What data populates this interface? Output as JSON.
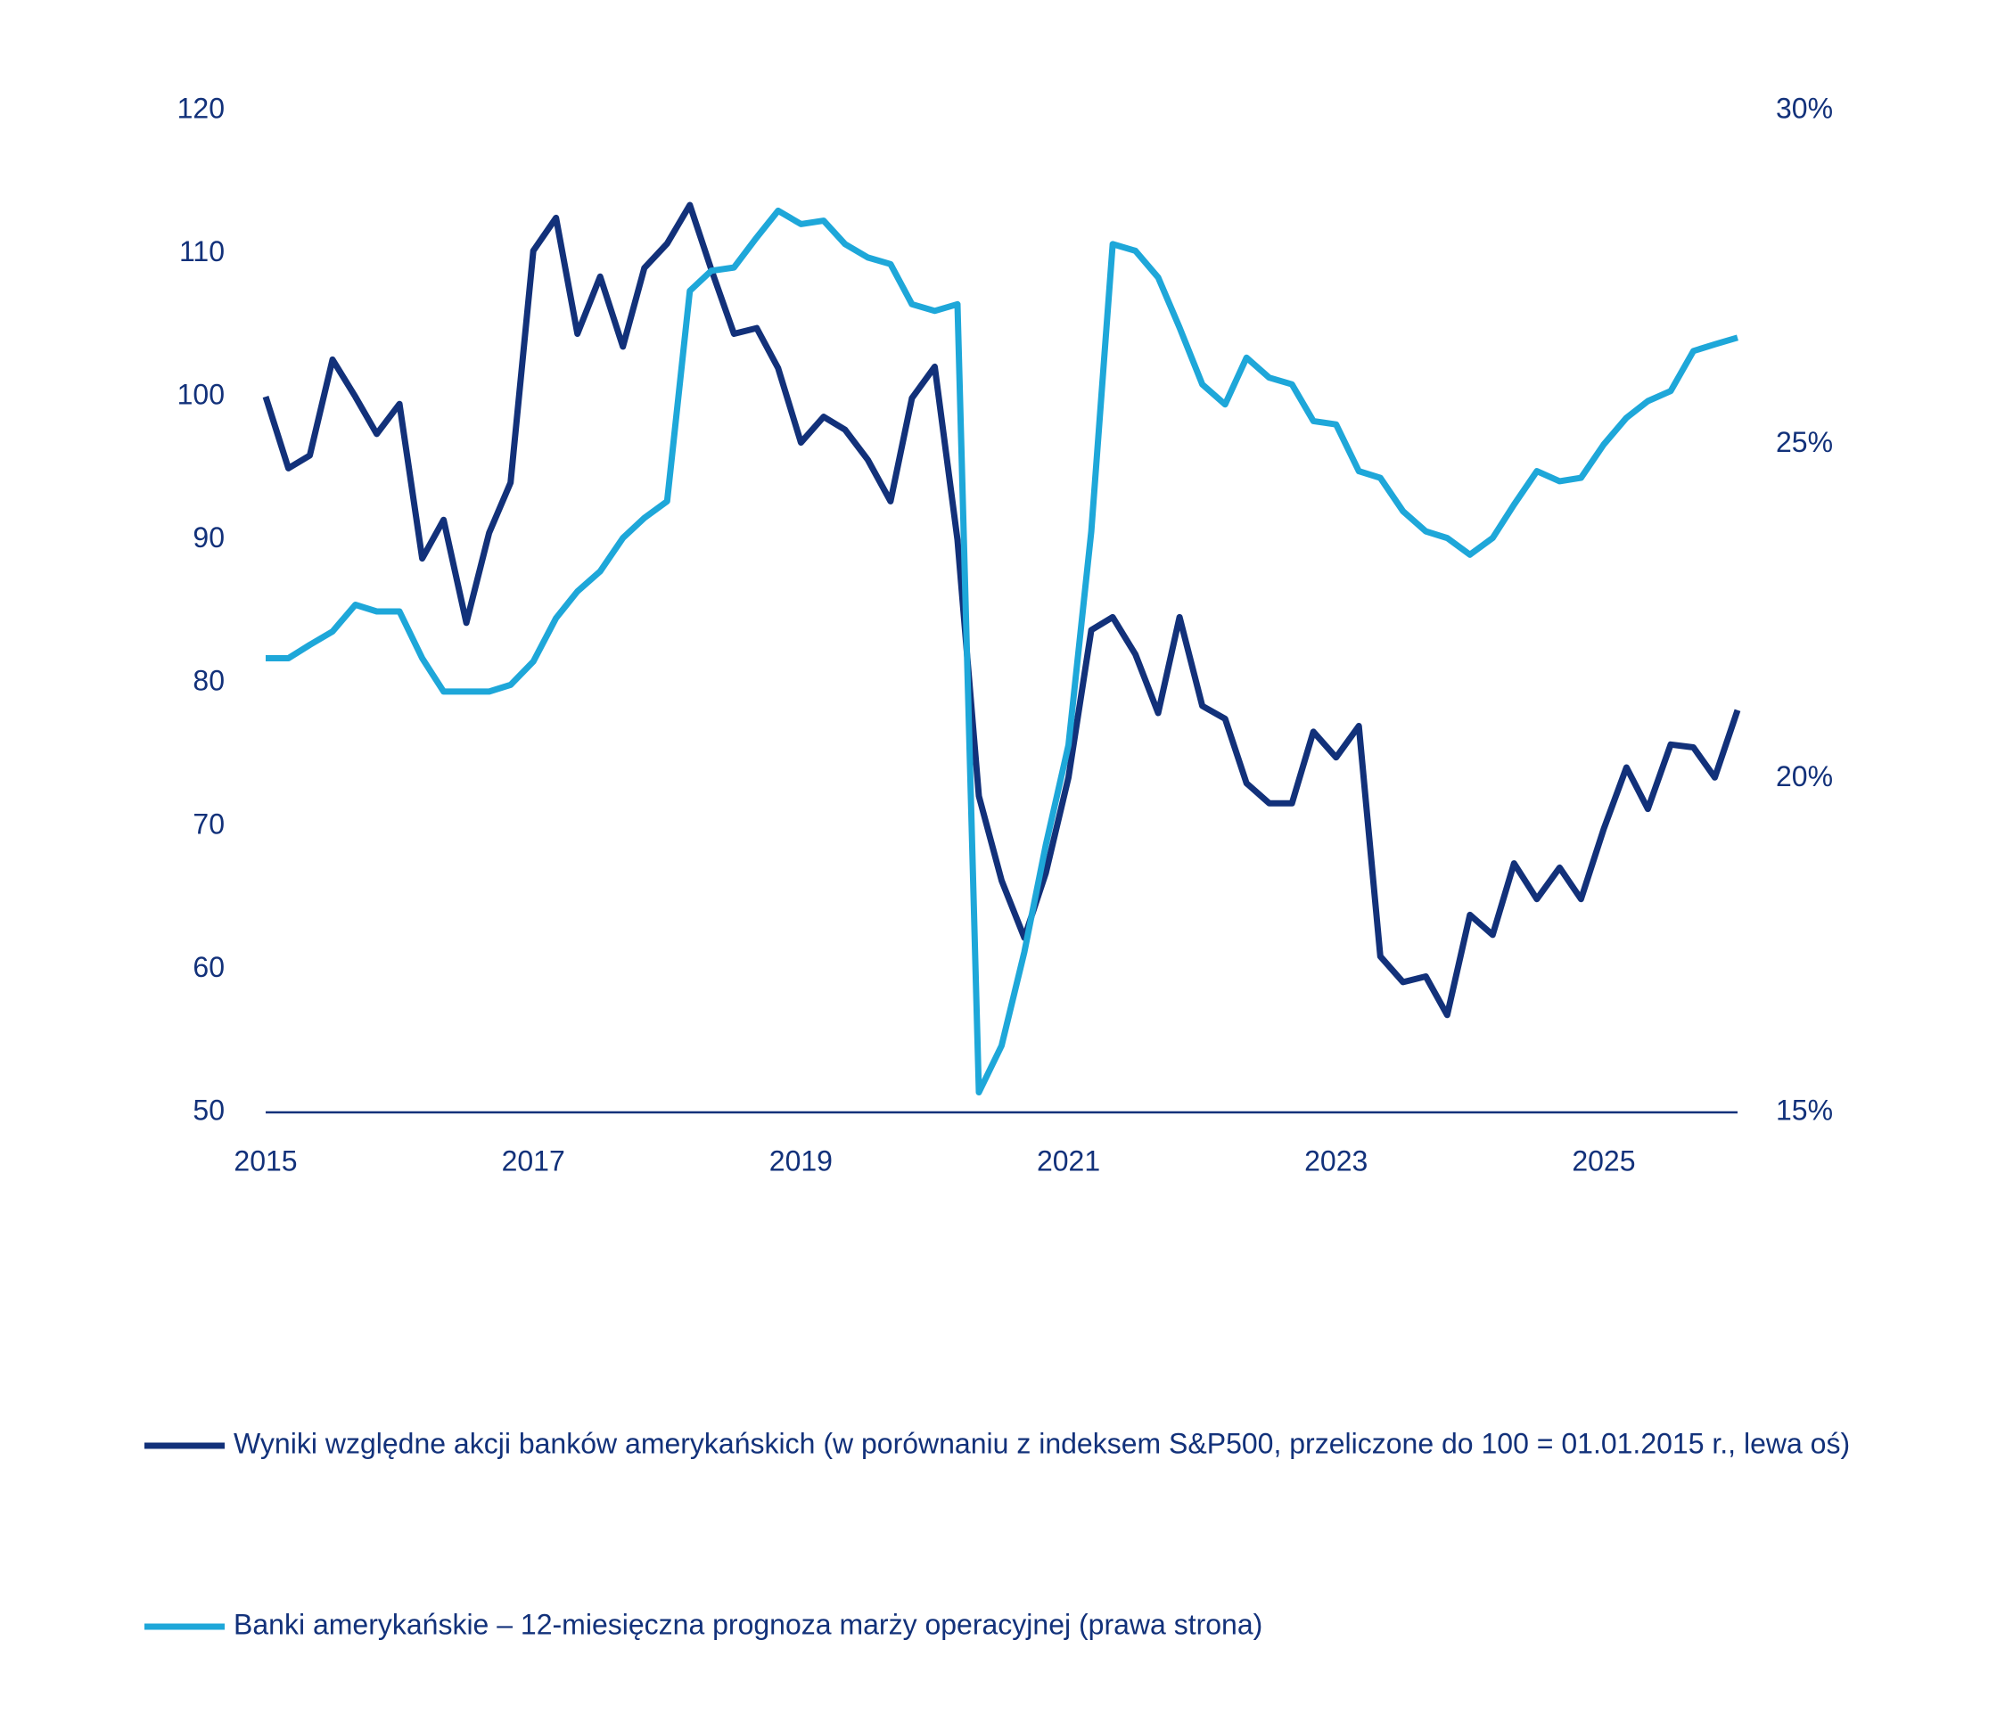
{
  "chart_data": {
    "type": "line",
    "x": [
      2015,
      2015.17,
      2015.33,
      2015.5,
      2015.67,
      2015.83,
      2016,
      2016.17,
      2016.33,
      2016.5,
      2016.67,
      2016.83,
      2017,
      2017.17,
      2017.33,
      2017.5,
      2017.67,
      2017.83,
      2018,
      2018.17,
      2018.33,
      2018.5,
      2018.67,
      2018.83,
      2019,
      2019.17,
      2019.33,
      2019.5,
      2019.67,
      2019.83,
      2020,
      2020.17,
      2020.33,
      2020.5,
      2020.67,
      2020.83,
      2021,
      2021.17,
      2021.33,
      2021.5,
      2021.67,
      2021.83,
      2022,
      2022.17,
      2022.33,
      2022.5,
      2022.67,
      2022.83,
      2023,
      2023.17,
      2023.33,
      2023.5,
      2023.67,
      2023.83,
      2024,
      2024.17,
      2024.33,
      2024.5,
      2024.67,
      2024.83,
      2025,
      2025.17,
      2025.33,
      2025.5,
      2025.67,
      2025.83,
      2026
    ],
    "series": [
      {
        "name": "Wyniki względne akcji banków amerykańskich (w porównaniu z indeksem S&P500, przeliczone do 100 = 01.01.2015 r., lewa oś)",
        "color": "#12317a",
        "values": [
          100,
          95,
          95.9,
          102.6,
          100,
          97.4,
          99.5,
          88.7,
          91.4,
          84.2,
          90.5,
          94,
          110.2,
          112.5,
          104.4,
          108.4,
          103.5,
          109,
          110.7,
          113.4,
          108.9,
          104.4,
          104.8,
          102,
          96.8,
          98.6,
          97.7,
          95.6,
          92.7,
          99.9,
          102.1,
          90,
          72.1,
          66.2,
          62.2,
          66.7,
          73.4,
          83.7,
          84.6,
          82,
          77.9,
          84.6,
          78.4,
          77.5,
          73,
          71.6,
          71.6,
          76.6,
          74.8,
          77,
          60.9,
          59.1,
          59.5,
          56.8,
          63.8,
          62.4,
          67.4,
          64.9,
          67.1,
          64.9,
          69.8,
          74.1,
          71.2,
          75.7,
          75.5,
          73.4,
          78.1
        ]
      },
      {
        "name": "Banki amerykańskie – 12-miesięczna prognoza marży operacyjnej (prawa strona)",
        "color": "#1ea7d9",
        "axis": "y2",
        "values": [
          21.8,
          21.8,
          22.0,
          22.2,
          22.6,
          22.5,
          22.5,
          21.8,
          21.3,
          21.3,
          21.3,
          21.4,
          21.75,
          22.4,
          22.8,
          23.1,
          23.6,
          23.9,
          24.15,
          27.3,
          27.6,
          27.65,
          28.1,
          28.5,
          28.3,
          28.35,
          28.0,
          27.8,
          27.7,
          27.1,
          27.0,
          27.1,
          15.3,
          16.0,
          17.4,
          19.0,
          20.5,
          23.7,
          28.0,
          27.9,
          27.5,
          26.75,
          25.9,
          25.6,
          26.3,
          26.0,
          25.9,
          25.35,
          25.3,
          24.6,
          24.5,
          24.0,
          23.7,
          23.6,
          23.35,
          23.6,
          24.1,
          24.6,
          24.45,
          24.5,
          25.0,
          25.4,
          25.65,
          25.8,
          26.4,
          26.5,
          26.6
        ]
      }
    ],
    "xlim": [
      2015,
      2026
    ],
    "xticks": [
      2015,
      2017,
      2019,
      2021,
      2023,
      2025
    ],
    "ylim": [
      50,
      120
    ],
    "yticks": [
      50,
      60,
      70,
      80,
      90,
      100,
      110,
      120
    ],
    "y2lim": [
      15,
      30
    ],
    "y2ticks": [
      {
        "value": 15,
        "label": "15%"
      },
      {
        "value": 20,
        "label": "20%"
      },
      {
        "value": 25,
        "label": "25%"
      },
      {
        "value": 30,
        "label": "30%"
      }
    ],
    "grid": false,
    "legend": "bottom"
  }
}
